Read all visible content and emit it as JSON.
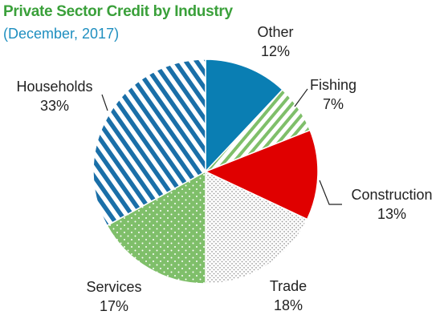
{
  "chart_data": {
    "type": "pie",
    "title": "Private Sector Credit by Industry",
    "subtitle": "(December, 2017)",
    "slices": [
      {
        "label": "Other",
        "value": 12,
        "value_label": "12%",
        "color": "#0a7eb3",
        "pattern": "solid"
      },
      {
        "label": "Fishing",
        "value": 7,
        "value_label": "7%",
        "color": "#7fbf6a",
        "pattern": "vertical-stripes"
      },
      {
        "label": "Construction",
        "value": 13,
        "value_label": "13%",
        "color": "#e00000",
        "pattern": "solid"
      },
      {
        "label": "Trade",
        "value": 18,
        "value_label": "18%",
        "color": "#b8b8b8",
        "pattern": "fine-dots"
      },
      {
        "label": "Services",
        "value": 17,
        "value_label": "17%",
        "color": "#7fbf6a",
        "pattern": "white-dots"
      },
      {
        "label": "Households",
        "value": 33,
        "value_label": "33%",
        "color": "#1a6fa8",
        "pattern": "diagonal-stripes"
      }
    ]
  }
}
